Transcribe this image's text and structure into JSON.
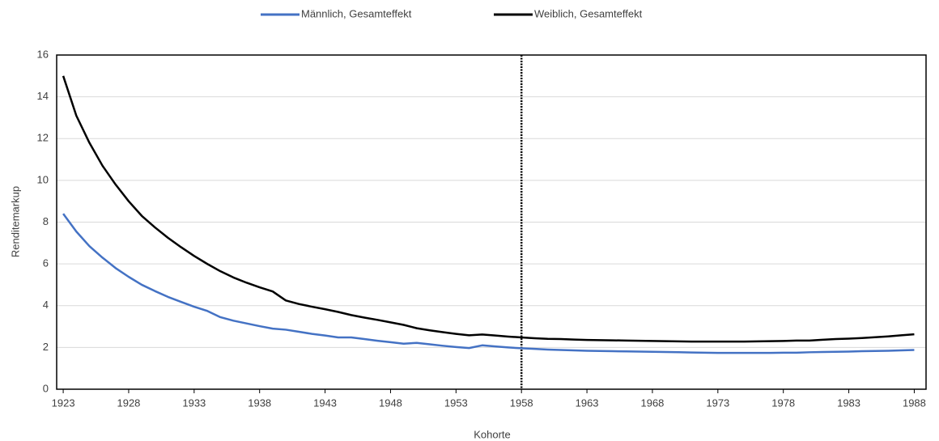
{
  "chart_data": {
    "type": "line",
    "x_label": "Kohorte",
    "y_label": "Renditemarkup",
    "x": [
      1923,
      1924,
      1925,
      1926,
      1927,
      1928,
      1929,
      1930,
      1931,
      1932,
      1933,
      1934,
      1935,
      1936,
      1937,
      1938,
      1939,
      1940,
      1941,
      1942,
      1943,
      1944,
      1945,
      1946,
      1947,
      1948,
      1949,
      1950,
      1951,
      1952,
      1953,
      1954,
      1955,
      1956,
      1957,
      1958,
      1959,
      1960,
      1961,
      1962,
      1963,
      1964,
      1965,
      1966,
      1967,
      1968,
      1969,
      1970,
      1971,
      1972,
      1973,
      1974,
      1975,
      1976,
      1977,
      1978,
      1979,
      1980,
      1981,
      1982,
      1983,
      1984,
      1985,
      1986,
      1987,
      1988
    ],
    "series": [
      {
        "name": "Männlich, Gesamteffekt",
        "color": "#4472c4",
        "values": [
          8.4,
          7.55,
          6.85,
          6.3,
          5.8,
          5.38,
          5.0,
          4.7,
          4.42,
          4.18,
          3.95,
          3.75,
          3.45,
          3.28,
          3.15,
          3.02,
          2.9,
          2.85,
          2.75,
          2.65,
          2.57,
          2.48,
          2.48,
          2.4,
          2.32,
          2.25,
          2.18,
          2.22,
          2.15,
          2.08,
          2.02,
          1.97,
          2.1,
          2.05,
          2.0,
          1.96,
          1.93,
          1.9,
          1.88,
          1.86,
          1.84,
          1.83,
          1.82,
          1.81,
          1.8,
          1.79,
          1.78,
          1.77,
          1.76,
          1.75,
          1.74,
          1.74,
          1.74,
          1.74,
          1.74,
          1.75,
          1.75,
          1.77,
          1.78,
          1.79,
          1.8,
          1.82,
          1.83,
          1.84,
          1.86,
          1.88
        ]
      },
      {
        "name": "Weiblich, Gesamteffekt",
        "color": "#000000",
        "values": [
          15.0,
          13.1,
          11.8,
          10.7,
          9.8,
          9.0,
          8.3,
          7.75,
          7.25,
          6.8,
          6.38,
          6.0,
          5.65,
          5.35,
          5.1,
          4.88,
          4.68,
          4.25,
          4.08,
          3.95,
          3.83,
          3.7,
          3.55,
          3.43,
          3.32,
          3.2,
          3.08,
          2.92,
          2.82,
          2.73,
          2.65,
          2.58,
          2.62,
          2.57,
          2.52,
          2.48,
          2.44,
          2.41,
          2.4,
          2.38,
          2.36,
          2.35,
          2.34,
          2.33,
          2.32,
          2.31,
          2.3,
          2.29,
          2.28,
          2.28,
          2.28,
          2.28,
          2.28,
          2.29,
          2.3,
          2.31,
          2.33,
          2.33,
          2.37,
          2.4,
          2.42,
          2.45,
          2.49,
          2.53,
          2.58,
          2.63
        ]
      }
    ],
    "xlim": [
      1922.5,
      1988.9
    ],
    "xticks": [
      1923,
      1928,
      1933,
      1938,
      1943,
      1948,
      1953,
      1958,
      1963,
      1968,
      1973,
      1978,
      1983,
      1988
    ],
    "ylim": [
      0,
      16
    ],
    "yticks": [
      0,
      2,
      4,
      6,
      8,
      10,
      12,
      14,
      16
    ],
    "grid": true,
    "legend": "top",
    "vline": 1958
  }
}
